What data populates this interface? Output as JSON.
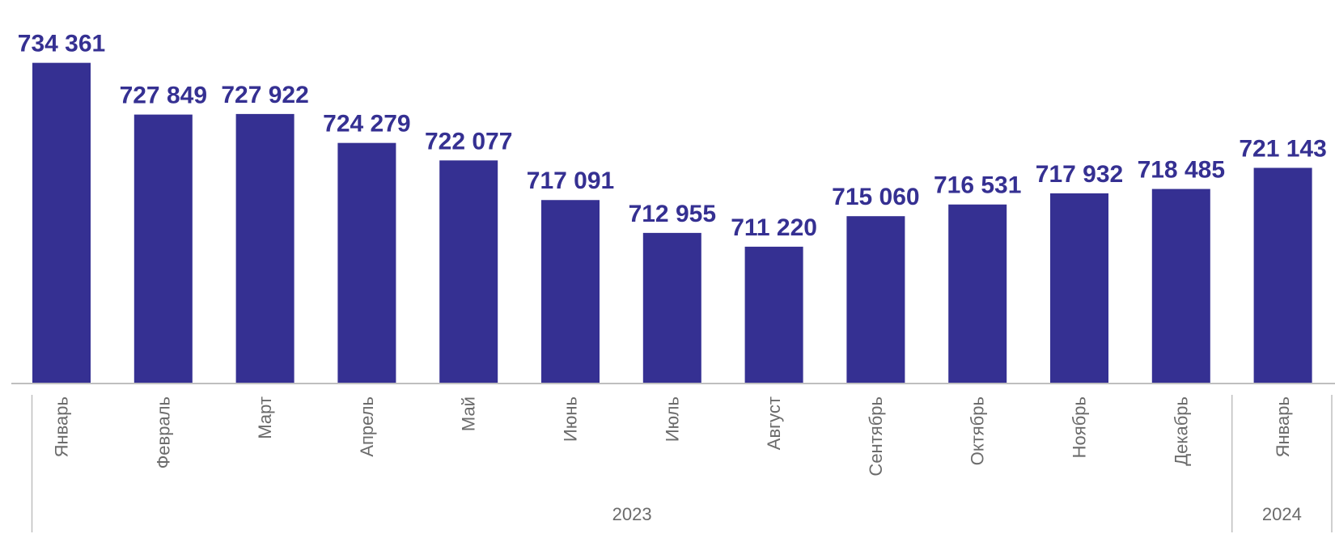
{
  "chart_data": {
    "type": "bar",
    "categories": [
      "Январь",
      "Февраль",
      "Март",
      "Апрель",
      "Май",
      "Июнь",
      "Июль",
      "Август",
      "Сентябрь",
      "Октябрь",
      "Ноябрь",
      "Декабрь",
      "Январь"
    ],
    "values": [
      734361,
      727849,
      727922,
      724279,
      722077,
      717091,
      712955,
      711220,
      715060,
      716531,
      717932,
      718485,
      721143
    ],
    "value_labels": [
      "734 361",
      "727 849",
      "727 922",
      "724 279",
      "722 077",
      "717 091",
      "712 955",
      "711 220",
      "715 060",
      "716 531",
      "717 932",
      "718 485",
      "721 143"
    ],
    "groups": [
      {
        "label": "2023",
        "count": 12
      },
      {
        "label": "2024",
        "count": 1
      }
    ],
    "title": "",
    "xlabel": "",
    "ylabel": "",
    "ylim": [
      694000,
      738000
    ],
    "bar_color": "#353092",
    "label_color": "#353092",
    "axis_text_color": "#6b6b6b",
    "grid": false,
    "legend": "none"
  }
}
